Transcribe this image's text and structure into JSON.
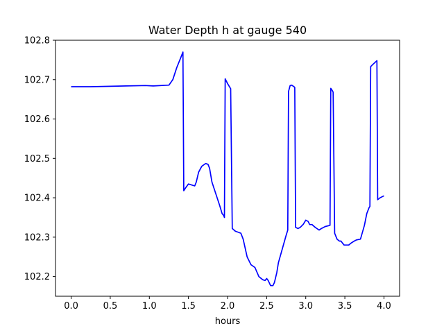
{
  "chart_data": {
    "type": "line",
    "title": "Water Depth h at gauge 540",
    "xlabel": "hours",
    "ylabel": "",
    "xlim": [
      -0.2,
      4.2
    ],
    "ylim": [
      102.15,
      102.8
    ],
    "grid": false,
    "xticks": [
      0.0,
      0.5,
      1.0,
      1.5,
      2.0,
      2.5,
      3.0,
      3.5,
      4.0
    ],
    "xtick_labels": [
      "0.0",
      "0.5",
      "1.0",
      "1.5",
      "2.0",
      "2.5",
      "3.0",
      "3.5",
      "4.0"
    ],
    "yticks": [
      102.2,
      102.3,
      102.4,
      102.5,
      102.6,
      102.7,
      102.8
    ],
    "ytick_labels": [
      "102.2",
      "102.3",
      "102.4",
      "102.5",
      "102.6",
      "102.7",
      "102.8"
    ],
    "series": [
      {
        "color": "#0000ff",
        "x": [
          0.0,
          0.25,
          0.5,
          0.7,
          0.95,
          1.05,
          1.25,
          1.3,
          1.35,
          1.4,
          1.43,
          1.44,
          1.47,
          1.5,
          1.55,
          1.58,
          1.6,
          1.63,
          1.67,
          1.72,
          1.75,
          1.77,
          1.8,
          1.85,
          1.9,
          1.93,
          1.95,
          1.96,
          1.97,
          2.0,
          2.03,
          2.04,
          2.06,
          2.1,
          2.13,
          2.17,
          2.2,
          2.25,
          2.3,
          2.35,
          2.4,
          2.45,
          2.48,
          2.5,
          2.52,
          2.55,
          2.58,
          2.6,
          2.63,
          2.65,
          2.7,
          2.75,
          2.77,
          2.78,
          2.8,
          2.82,
          2.85,
          2.86,
          2.87,
          2.9,
          2.93,
          2.97,
          3.0,
          3.03,
          3.05,
          3.08,
          3.12,
          3.17,
          3.2,
          3.25,
          3.31,
          3.32,
          3.34,
          3.35,
          3.37,
          3.4,
          3.43,
          3.45,
          3.47,
          3.49,
          3.52,
          3.55,
          3.58,
          3.62,
          3.65,
          3.7,
          3.75,
          3.78,
          3.81,
          3.82,
          3.83,
          3.85,
          3.91,
          3.92,
          3.95,
          4.0
        ],
        "values": [
          102.682,
          102.682,
          102.683,
          102.684,
          102.685,
          102.684,
          102.686,
          102.7,
          102.73,
          102.755,
          102.77,
          102.418,
          102.427,
          102.435,
          102.432,
          102.43,
          102.44,
          102.465,
          102.48,
          102.487,
          102.485,
          102.475,
          102.44,
          102.41,
          102.38,
          102.36,
          102.355,
          102.35,
          102.702,
          102.69,
          102.68,
          102.677,
          102.322,
          102.315,
          102.313,
          102.31,
          102.295,
          102.25,
          102.23,
          102.223,
          102.2,
          102.192,
          102.19,
          102.195,
          102.19,
          102.177,
          102.177,
          102.185,
          102.21,
          102.235,
          102.27,
          102.305,
          102.318,
          102.67,
          102.685,
          102.686,
          102.682,
          102.68,
          102.325,
          102.322,
          102.325,
          102.333,
          102.343,
          102.34,
          102.332,
          102.332,
          102.325,
          102.318,
          102.322,
          102.327,
          102.33,
          102.678,
          102.672,
          102.668,
          102.31,
          102.295,
          102.29,
          102.29,
          102.285,
          102.28,
          102.28,
          102.28,
          102.285,
          102.29,
          102.293,
          102.295,
          102.33,
          102.36,
          102.375,
          102.378,
          102.733,
          102.737,
          102.748,
          102.395,
          102.4,
          102.405
        ]
      }
    ]
  }
}
